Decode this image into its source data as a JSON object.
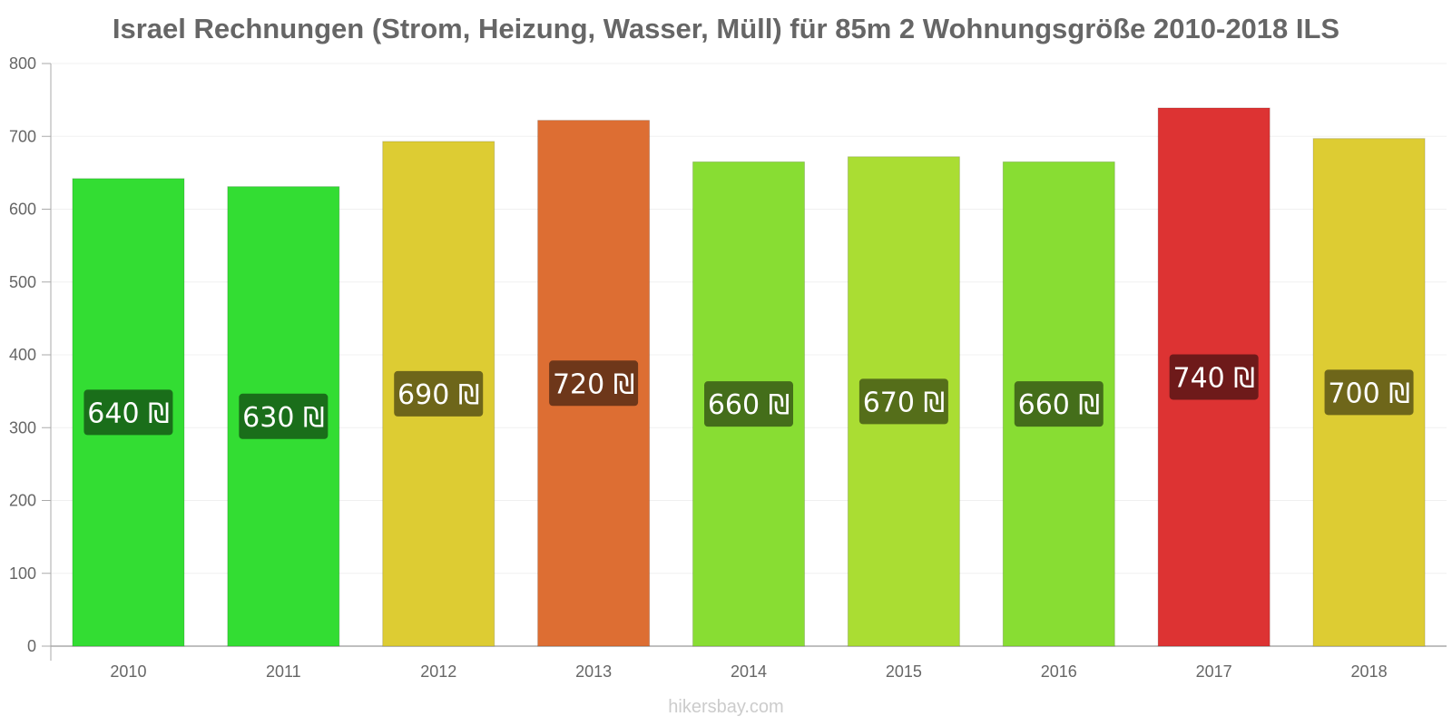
{
  "chart_data": {
    "type": "bar",
    "title": "Israel Rechnungen (Strom, Heizung, Wasser, Müll) für 85m 2 Wohnungsgröße 2010-2018 ILS",
    "categories": [
      "2010",
      "2011",
      "2012",
      "2013",
      "2014",
      "2015",
      "2016",
      "2017",
      "2018"
    ],
    "values": [
      642,
      631,
      693,
      722,
      665,
      672,
      665,
      739,
      697
    ],
    "data_labels": [
      "640 ₪",
      "630 ₪",
      "690 ₪",
      "720 ₪",
      "660 ₪",
      "670 ₪",
      "660 ₪",
      "740 ₪",
      "700 ₪"
    ],
    "bar_colors": [
      "#33dd33",
      "#33dd33",
      "#ddcc33",
      "#dd6e33",
      "#88dd33",
      "#aadd33",
      "#88dd33",
      "#dd3333",
      "#ddcc33"
    ],
    "label_bg_colors": [
      "#1a6e1a",
      "#1a6e1a",
      "#6e661a",
      "#6e371a",
      "#446e1a",
      "#556e1a",
      "#446e1a",
      "#6e1a1a",
      "#6e661a"
    ],
    "yticks": [
      0,
      100,
      200,
      300,
      400,
      500,
      600,
      700,
      800
    ],
    "ylim": [
      0,
      800
    ],
    "xlabel": "",
    "ylabel": "",
    "grid": true,
    "legend": "none"
  },
  "watermark": "hikersbay.com"
}
